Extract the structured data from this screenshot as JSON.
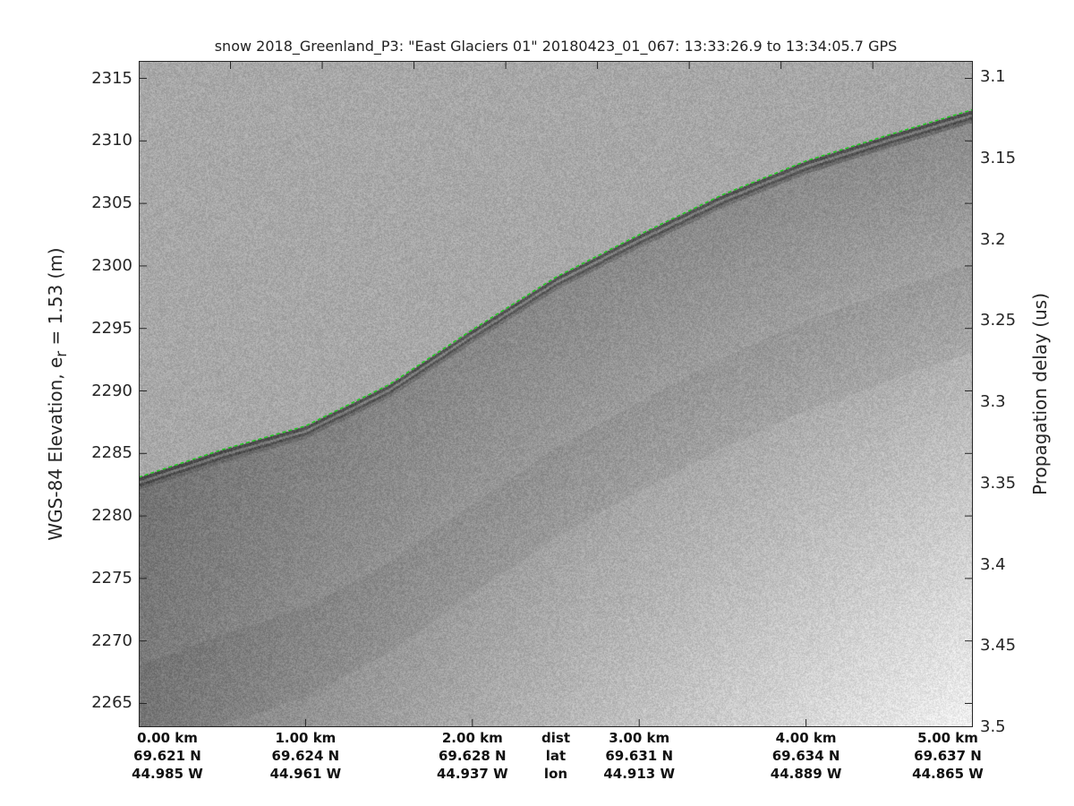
{
  "chart_data": {
    "type": "heatmap",
    "title": "snow 2018_Greenland_P3: \"East Glaciers 01\"  20180423_01_067: 13:33:26.9 to 13:34:05.7 GPS",
    "ylabel_left": {
      "main": "WGS-84 Elevation, e",
      "sub": "r",
      "tail": " = 1.53 (m)"
    },
    "ylabel_right": "Propagation delay (us)",
    "ylim_left": [
      2263.1,
      2316.4
    ],
    "ylim_right": [
      3.5,
      3.09
    ],
    "yticks_left": [
      "2265",
      "2270",
      "2275",
      "2280",
      "2285",
      "2290",
      "2295",
      "2300",
      "2305",
      "2310",
      "2315"
    ],
    "yticks_right": [
      "3.1",
      "3.15",
      "3.2",
      "3.25",
      "3.3",
      "3.35",
      "3.4",
      "3.45",
      "3.5"
    ],
    "xlim_km": [
      0,
      5
    ],
    "x_rows": [
      {
        "label": "dist",
        "values": [
          "0.00 km",
          "1.00 km",
          "2.00 km",
          "3.00 km",
          "4.00 km",
          "5.00 km"
        ]
      },
      {
        "label": "lat",
        "values": [
          "69.621 N",
          "69.624 N",
          "69.628 N",
          "69.631 N",
          "69.634 N",
          "69.637 N"
        ]
      },
      {
        "label": "lon",
        "values": [
          "44.985 W",
          "44.961 W",
          "44.937 W",
          "44.913 W",
          "44.889 W",
          "44.865 W"
        ]
      }
    ],
    "surface_series": {
      "distance_km": [
        0,
        0.5,
        1,
        1.5,
        2,
        2.5,
        3,
        3.5,
        4,
        4.5,
        5
      ],
      "elevation_m": [
        2283.1,
        2285.3,
        2287.2,
        2290.5,
        2294.9,
        2299.1,
        2302.5,
        2305.7,
        2308.4,
        2310.5,
        2312.5
      ],
      "color": "#22cc22",
      "style": "dashed"
    },
    "colormap": "gray",
    "grid": false
  }
}
